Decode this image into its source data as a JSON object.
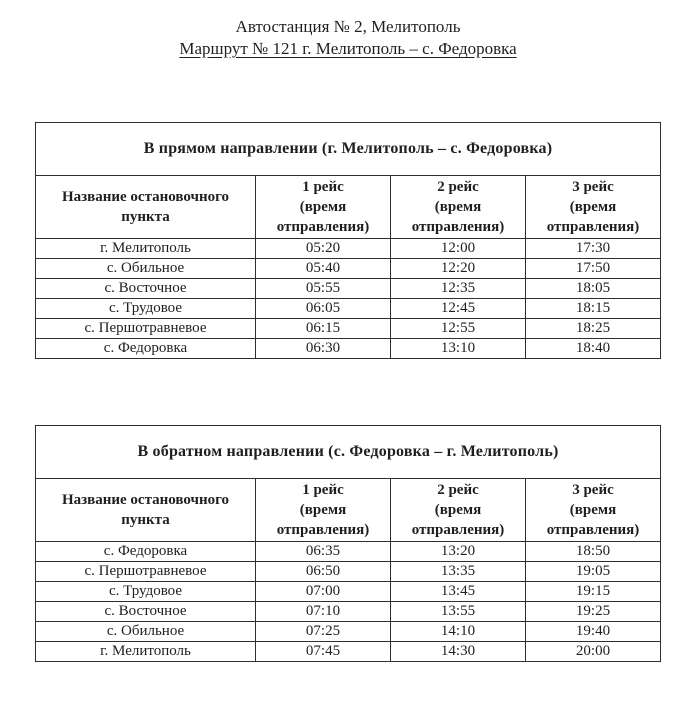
{
  "header": {
    "title": "Автостанция № 2, Мелитополь",
    "subtitle": "Маршрут № 121 г. Мелитополь – с. Федоровка"
  },
  "colors": {
    "text": "#1f1f1f",
    "border": "#2e2e2e",
    "background": "#ffffff"
  },
  "tables": [
    {
      "direction_title": "В прямом направлении (г. Мелитополь – с. Федоровка)",
      "columns": [
        "Название остановочного пункта",
        "1 рейс\n(время\nотправления)",
        "2 рейс\n(время\nотправления)",
        "3 рейс\n(время\nотправления)"
      ],
      "rows": [
        {
          "stop": "г. Мелитополь",
          "times": [
            "05:20",
            "12:00",
            "17:30"
          ]
        },
        {
          "stop": "с. Обильное",
          "times": [
            "05:40",
            "12:20",
            "17:50"
          ]
        },
        {
          "stop": "с. Восточное",
          "times": [
            "05:55",
            "12:35",
            "18:05"
          ]
        },
        {
          "stop": "с. Трудовое",
          "times": [
            "06:05",
            "12:45",
            "18:15"
          ]
        },
        {
          "stop": "с. Першотравневое",
          "times": [
            "06:15",
            "12:55",
            "18:25"
          ]
        },
        {
          "stop": "с. Федоровка",
          "times": [
            "06:30",
            "13:10",
            "18:40"
          ]
        }
      ]
    },
    {
      "direction_title": "В обратном направлении (с. Федоровка – г. Мелитополь)",
      "columns": [
        "Название остановочного пункта",
        "1 рейс\n(время\nотправления)",
        "2 рейс\n(время\nотправления)",
        "3 рейс\n(время\nотправления)"
      ],
      "rows": [
        {
          "stop": "с. Федоровка",
          "times": [
            "06:35",
            "13:20",
            "18:50"
          ]
        },
        {
          "stop": "с. Першотравневое",
          "times": [
            "06:50",
            "13:35",
            "19:05"
          ]
        },
        {
          "stop": "с. Трудовое",
          "times": [
            "07:00",
            "13:45",
            "19:15"
          ]
        },
        {
          "stop": "с. Восточное",
          "times": [
            "07:10",
            "13:55",
            "19:25"
          ]
        },
        {
          "stop": "с. Обильное",
          "times": [
            "07:25",
            "14:10",
            "19:40"
          ]
        },
        {
          "stop": "г. Мелитополь",
          "times": [
            "07:45",
            "14:30",
            "20:00"
          ]
        }
      ]
    }
  ]
}
